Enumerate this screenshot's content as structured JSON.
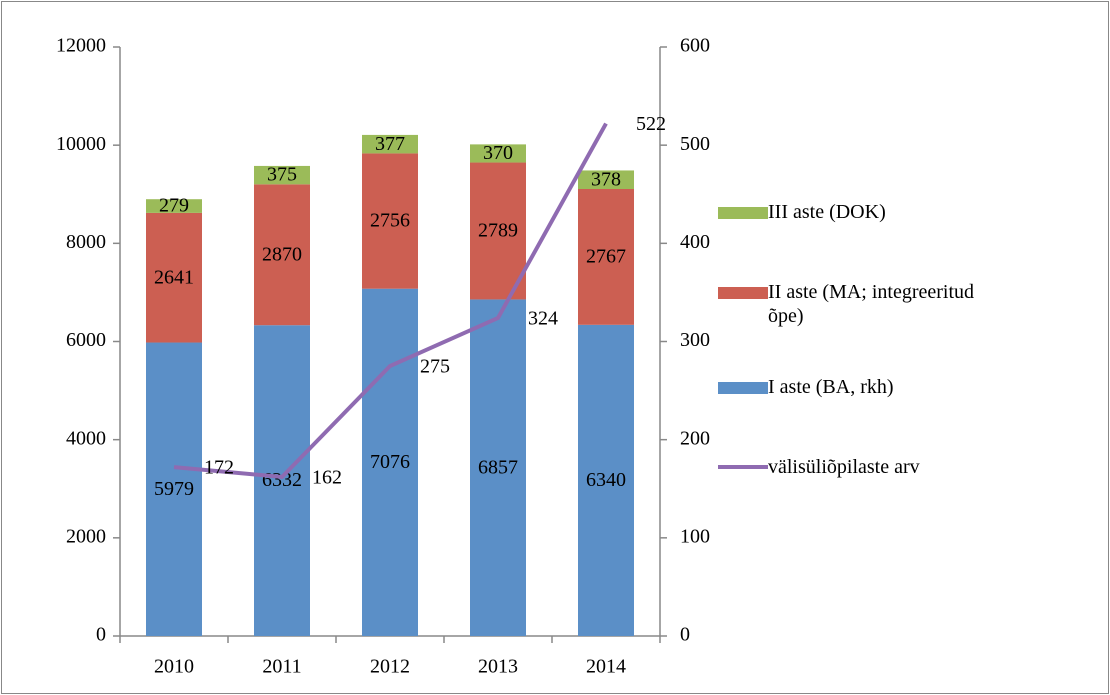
{
  "chart_data": {
    "type": "bar",
    "categories": [
      "2010",
      "2011",
      "2012",
      "2013",
      "2014"
    ],
    "series": [
      {
        "name": "I aste (BA, rkh)",
        "color": "#5b8fc7",
        "values": [
          5979,
          6332,
          7076,
          6857,
          6340
        ]
      },
      {
        "name": "II aste (MA; integreeritud õpe)",
        "color": "#cc5f52",
        "values": [
          2641,
          2870,
          2756,
          2789,
          2767
        ]
      },
      {
        "name": "III aste (DOK)",
        "color": "#9bbb59",
        "values": [
          279,
          375,
          377,
          370,
          378
        ]
      },
      {
        "name": "välisüliõpilaste arv",
        "color": "#8f6bb1",
        "type": "line",
        "axis": "y2",
        "values": [
          172,
          162,
          275,
          324,
          522
        ]
      }
    ],
    "legend_order": [
      2,
      1,
      0,
      3
    ],
    "ylim": [
      0,
      12000
    ],
    "yticks": [
      0,
      2000,
      4000,
      6000,
      8000,
      10000,
      12000
    ],
    "y2lim": [
      0,
      600
    ],
    "y2ticks": [
      0,
      100,
      200,
      300,
      400,
      500,
      600
    ],
    "grid": false,
    "legend": "right"
  }
}
